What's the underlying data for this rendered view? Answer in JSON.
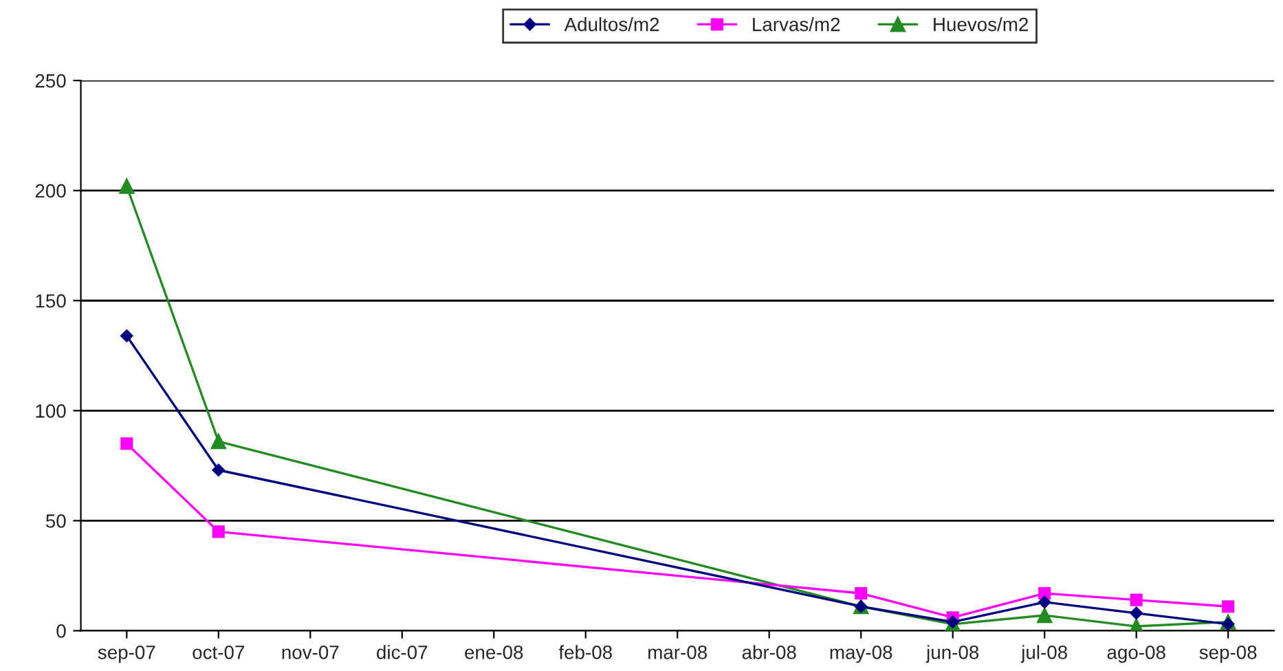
{
  "chart_data": {
    "type": "line",
    "categories": [
      "sep-07",
      "oct-07",
      "nov-07",
      "dic-07",
      "ene-08",
      "feb-08",
      "mar-08",
      "abr-08",
      "may-08",
      "jun-08",
      "jul-08",
      "ago-08",
      "sep-08"
    ],
    "series": [
      {
        "name": "Adultos/m2",
        "color": "#000080",
        "marker": "diamond",
        "values": [
          134,
          73,
          null,
          null,
          null,
          null,
          null,
          null,
          11,
          4,
          13,
          8,
          3
        ]
      },
      {
        "name": "Larvas/m2",
        "color": "#ff00ff",
        "marker": "square",
        "values": [
          85,
          45,
          null,
          null,
          null,
          null,
          null,
          null,
          17,
          6,
          17,
          14,
          11
        ]
      },
      {
        "name": "Huevos/m2",
        "color": "#228b22",
        "marker": "triangle",
        "values": [
          202,
          86,
          null,
          null,
          null,
          null,
          null,
          null,
          11,
          3,
          7,
          2,
          4
        ]
      }
    ],
    "ylim": [
      0,
      250
    ],
    "yticks": [
      0,
      50,
      100,
      150,
      200,
      250
    ],
    "grid": "y",
    "legend": "top",
    "line_style": "solid"
  }
}
